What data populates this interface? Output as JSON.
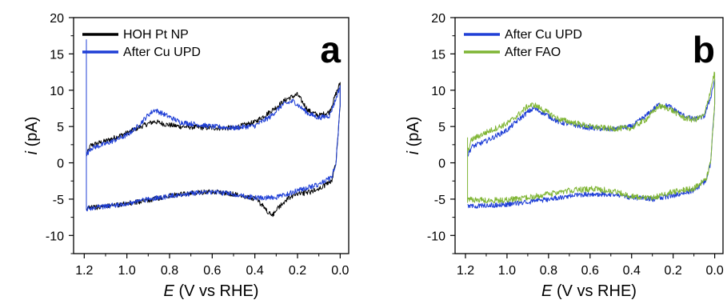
{
  "chart_data": [
    {
      "type": "line",
      "panel_label": "a",
      "xlabel_var": "E",
      "xlabel_rest": " (V vs RHE)",
      "ylabel_var": "i",
      "ylabel_rest": " (pA)",
      "xlim": [
        1.25,
        -0.04
      ],
      "ylim": [
        -12.5,
        20
      ],
      "xticks": [
        "1.2",
        "1.0",
        "0.8",
        "0.6",
        "0.4",
        "0.2",
        "0.0"
      ],
      "yticks": [
        "20",
        "15",
        "10",
        "5",
        "0",
        "-5",
        "-10"
      ],
      "legend_position": "top-left",
      "series": [
        {
          "name": "HOH Pt NP",
          "color": "#000000",
          "noise": 0.35,
          "anodic": [
            [
              1.19,
              1.0
            ],
            [
              1.17,
              2.4
            ],
            [
              1.1,
              3.0
            ],
            [
              1.0,
              4.1
            ],
            [
              0.95,
              4.8
            ],
            [
              0.9,
              5.4
            ],
            [
              0.87,
              5.7
            ],
            [
              0.82,
              5.3
            ],
            [
              0.75,
              5.0
            ],
            [
              0.6,
              4.8
            ],
            [
              0.5,
              4.8
            ],
            [
              0.4,
              5.6
            ],
            [
              0.33,
              7.0
            ],
            [
              0.25,
              8.8
            ],
            [
              0.2,
              9.4
            ],
            [
              0.15,
              7.2
            ],
            [
              0.1,
              6.5
            ],
            [
              0.05,
              7.0
            ],
            [
              0.02,
              9.5
            ],
            [
              0.0,
              11.0
            ]
          ],
          "cathodic": [
            [
              0.0,
              8.0
            ],
            [
              0.02,
              0.0
            ],
            [
              0.04,
              -2.5
            ],
            [
              0.1,
              -3.6
            ],
            [
              0.15,
              -4.1
            ],
            [
              0.2,
              -4.3
            ],
            [
              0.25,
              -5.0
            ],
            [
              0.3,
              -6.5
            ],
            [
              0.32,
              -7.4
            ],
            [
              0.36,
              -6.0
            ],
            [
              0.4,
              -4.9
            ],
            [
              0.5,
              -4.3
            ],
            [
              0.6,
              -3.9
            ],
            [
              0.7,
              -4.2
            ],
            [
              0.8,
              -4.5
            ],
            [
              0.9,
              -5.2
            ],
            [
              1.0,
              -5.6
            ],
            [
              1.1,
              -6.0
            ],
            [
              1.19,
              -6.2
            ]
          ]
        },
        {
          "name": "After Cu UPD",
          "color": "#1f3fd6",
          "noise": 0.35,
          "anodic": [
            [
              1.19,
              1.0
            ],
            [
              1.17,
              2.0
            ],
            [
              1.1,
              2.6
            ],
            [
              1.0,
              3.8
            ],
            [
              0.95,
              5.0
            ],
            [
              0.9,
              6.6
            ],
            [
              0.87,
              7.3
            ],
            [
              0.82,
              6.6
            ],
            [
              0.75,
              5.6
            ],
            [
              0.6,
              5.0
            ],
            [
              0.5,
              4.8
            ],
            [
              0.4,
              5.1
            ],
            [
              0.33,
              6.3
            ],
            [
              0.27,
              8.0
            ],
            [
              0.22,
              8.5
            ],
            [
              0.15,
              6.8
            ],
            [
              0.1,
              6.2
            ],
            [
              0.05,
              6.5
            ],
            [
              0.02,
              8.8
            ],
            [
              0.0,
              10.6
            ]
          ],
          "cathodic": [
            [
              0.0,
              8.0
            ],
            [
              0.02,
              0.0
            ],
            [
              0.04,
              -2.0
            ],
            [
              0.1,
              -3.0
            ],
            [
              0.2,
              -3.8
            ],
            [
              0.3,
              -4.8
            ],
            [
              0.4,
              -4.8
            ],
            [
              0.5,
              -4.3
            ],
            [
              0.6,
              -4.0
            ],
            [
              0.7,
              -4.2
            ],
            [
              0.8,
              -4.6
            ],
            [
              0.9,
              -5.0
            ],
            [
              1.0,
              -5.6
            ],
            [
              1.1,
              -6.0
            ],
            [
              1.19,
              -6.3
            ]
          ]
        }
      ],
      "spike": {
        "x": 1.19,
        "y1": -6.5,
        "y2": 17.0,
        "color": "#1f3fd6"
      }
    },
    {
      "type": "line",
      "panel_label": "b",
      "xlabel_var": "E",
      "xlabel_rest": " (V vs RHE)",
      "ylabel_var": "i",
      "ylabel_rest": " (pA)",
      "xlim": [
        1.25,
        -0.04
      ],
      "ylim": [
        -12.5,
        20
      ],
      "xticks": [
        "1.2",
        "1.0",
        "0.8",
        "0.6",
        "0.4",
        "0.2",
        "0.0"
      ],
      "yticks": [
        "20",
        "15",
        "10",
        "5",
        "0",
        "-5",
        "-10"
      ],
      "legend_position": "top-left",
      "series": [
        {
          "name": "After Cu UPD",
          "color": "#1f3fd6",
          "noise": 0.35,
          "anodic": [
            [
              1.19,
              1.0
            ],
            [
              1.17,
              2.2
            ],
            [
              1.1,
              3.0
            ],
            [
              1.0,
              4.5
            ],
            [
              0.95,
              5.8
            ],
            [
              0.9,
              7.0
            ],
            [
              0.87,
              7.5
            ],
            [
              0.82,
              6.8
            ],
            [
              0.75,
              5.6
            ],
            [
              0.6,
              4.8
            ],
            [
              0.5,
              4.6
            ],
            [
              0.4,
              5.0
            ],
            [
              0.33,
              6.5
            ],
            [
              0.27,
              8.0
            ],
            [
              0.22,
              7.8
            ],
            [
              0.15,
              6.5
            ],
            [
              0.1,
              6.0
            ],
            [
              0.05,
              6.4
            ],
            [
              0.02,
              9.0
            ],
            [
              0.0,
              11.5
            ]
          ],
          "cathodic": [
            [
              0.0,
              8.0
            ],
            [
              0.02,
              0.0
            ],
            [
              0.04,
              -2.4
            ],
            [
              0.1,
              -3.8
            ],
            [
              0.2,
              -4.5
            ],
            [
              0.3,
              -5.0
            ],
            [
              0.4,
              -4.8
            ],
            [
              0.5,
              -4.3
            ],
            [
              0.6,
              -4.3
            ],
            [
              0.7,
              -4.6
            ],
            [
              0.8,
              -5.0
            ],
            [
              0.9,
              -5.4
            ],
            [
              1.0,
              -5.7
            ],
            [
              1.1,
              -5.9
            ],
            [
              1.19,
              -6.0
            ]
          ]
        },
        {
          "name": "After FAO",
          "color": "#7fb534",
          "noise": 0.4,
          "anodic": [
            [
              1.19,
              1.5
            ],
            [
              1.17,
              3.2
            ],
            [
              1.1,
              4.2
            ],
            [
              1.0,
              5.4
            ],
            [
              0.95,
              6.5
            ],
            [
              0.9,
              7.8
            ],
            [
              0.87,
              8.0
            ],
            [
              0.82,
              7.2
            ],
            [
              0.75,
              6.0
            ],
            [
              0.6,
              5.0
            ],
            [
              0.5,
              4.7
            ],
            [
              0.4,
              4.8
            ],
            [
              0.33,
              6.0
            ],
            [
              0.27,
              7.8
            ],
            [
              0.22,
              7.5
            ],
            [
              0.15,
              6.2
            ],
            [
              0.1,
              5.9
            ],
            [
              0.05,
              6.5
            ],
            [
              0.02,
              10.0
            ],
            [
              0.0,
              12.5
            ]
          ],
          "cathodic": [
            [
              0.0,
              8.0
            ],
            [
              0.02,
              0.0
            ],
            [
              0.04,
              -2.2
            ],
            [
              0.1,
              -3.5
            ],
            [
              0.2,
              -4.0
            ],
            [
              0.3,
              -4.8
            ],
            [
              0.4,
              -4.6
            ],
            [
              0.5,
              -3.8
            ],
            [
              0.6,
              -3.6
            ],
            [
              0.7,
              -3.8
            ],
            [
              0.8,
              -4.3
            ],
            [
              0.9,
              -4.8
            ],
            [
              1.0,
              -5.1
            ],
            [
              1.1,
              -5.2
            ],
            [
              1.19,
              -5.0
            ]
          ]
        }
      ],
      "spike": {
        "x": 1.19,
        "y1": -5.5,
        "y2": 3.5,
        "color": "#7fb534"
      }
    }
  ]
}
